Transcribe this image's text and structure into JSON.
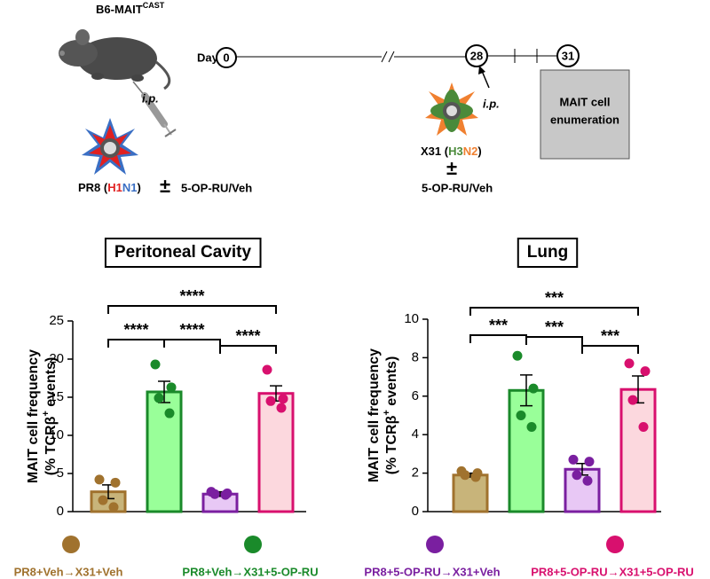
{
  "schematic": {
    "strain": "B6-MAIT",
    "strain_superscript": "CAST",
    "route_1": "i.p.",
    "route_2": "i.p.",
    "day_label": "Day",
    "days": [
      "0",
      "28",
      "31"
    ],
    "box": [
      "MAIT cell",
      "enumeration"
    ],
    "virus_1": {
      "name": "PR8 (",
      "h": "H1",
      "n": "N1",
      "close": ")",
      "plus_minus": "±",
      "treatment": "5-OP-RU/Veh"
    },
    "virus_2": {
      "name": "X31 (",
      "h": "H3",
      "n": "N2",
      "close": ")",
      "plus_minus": "±",
      "treatment": "5-OP-RU/Veh"
    }
  },
  "legend": {
    "names": [
      "PR8+Veh→X31+Veh",
      "PR8+Veh→X31+5-OP-RU",
      "PR8+5-OP-RU→X31+Veh",
      "PR8+5-OP-RU→X31+5-OP-RU"
    ],
    "colors": [
      "#a0722e",
      "#1a8a2a",
      "#7a1fa0",
      "#d8106e"
    ]
  },
  "chart_data": [
    {
      "type": "bar",
      "title": "Peritoneal Cavity",
      "y_label": [
        "MAIT cell frequency",
        "(% TCRβ",
        "+",
        " events)"
      ],
      "categories": [
        null,
        null,
        null,
        null
      ],
      "values": [
        2.6,
        15.7,
        2.3,
        15.5
      ],
      "errors": [
        0.9,
        1.4,
        0.3,
        1.0
      ],
      "points": [
        [
          4.2,
          3.8,
          1.5,
          0.6
        ],
        [
          19.3,
          16.3,
          14.9,
          12.9
        ],
        [
          2.6,
          2.4,
          2.3,
          2.2
        ],
        [
          18.6,
          14.8,
          14.5,
          13.6
        ]
      ],
      "colors": [
        "#a0722e",
        "#1a8a2a",
        "#7a1fa0",
        "#d8106e"
      ],
      "fill_colors": [
        "#c8b47a",
        "#99ff99",
        "#e8c8f5",
        "#fcd8de"
      ],
      "annotations": [
        "****",
        "****",
        "****",
        "****"
      ],
      "ylim": [
        0,
        25
      ],
      "yticks": [
        0,
        5,
        10,
        15,
        20,
        25
      ]
    },
    {
      "type": "bar",
      "title": "Lung",
      "y_label": [
        "MAIT cell frequency",
        "(% TCRβ",
        "+",
        " events)"
      ],
      "categories": [
        null,
        null,
        null,
        null
      ],
      "values": [
        1.9,
        6.3,
        2.2,
        6.35
      ],
      "errors": [
        0.1,
        0.8,
        0.3,
        0.7
      ],
      "points": [
        [
          2.1,
          2.0,
          1.9,
          1.8
        ],
        [
          8.1,
          6.4,
          5.0,
          4.4
        ],
        [
          2.7,
          2.6,
          1.9,
          1.6
        ],
        [
          7.7,
          7.3,
          5.8,
          4.4
        ]
      ],
      "colors": [
        "#a0722e",
        "#1a8a2a",
        "#7a1fa0",
        "#d8106e"
      ],
      "fill_colors": [
        "#c8b47a",
        "#99ff99",
        "#e8c8f5",
        "#fcd8de"
      ],
      "annotations": [
        "***",
        "***",
        "***",
        "***"
      ],
      "ylim": [
        0,
        10
      ],
      "yticks": [
        0,
        2,
        4,
        6,
        8,
        10
      ]
    }
  ]
}
